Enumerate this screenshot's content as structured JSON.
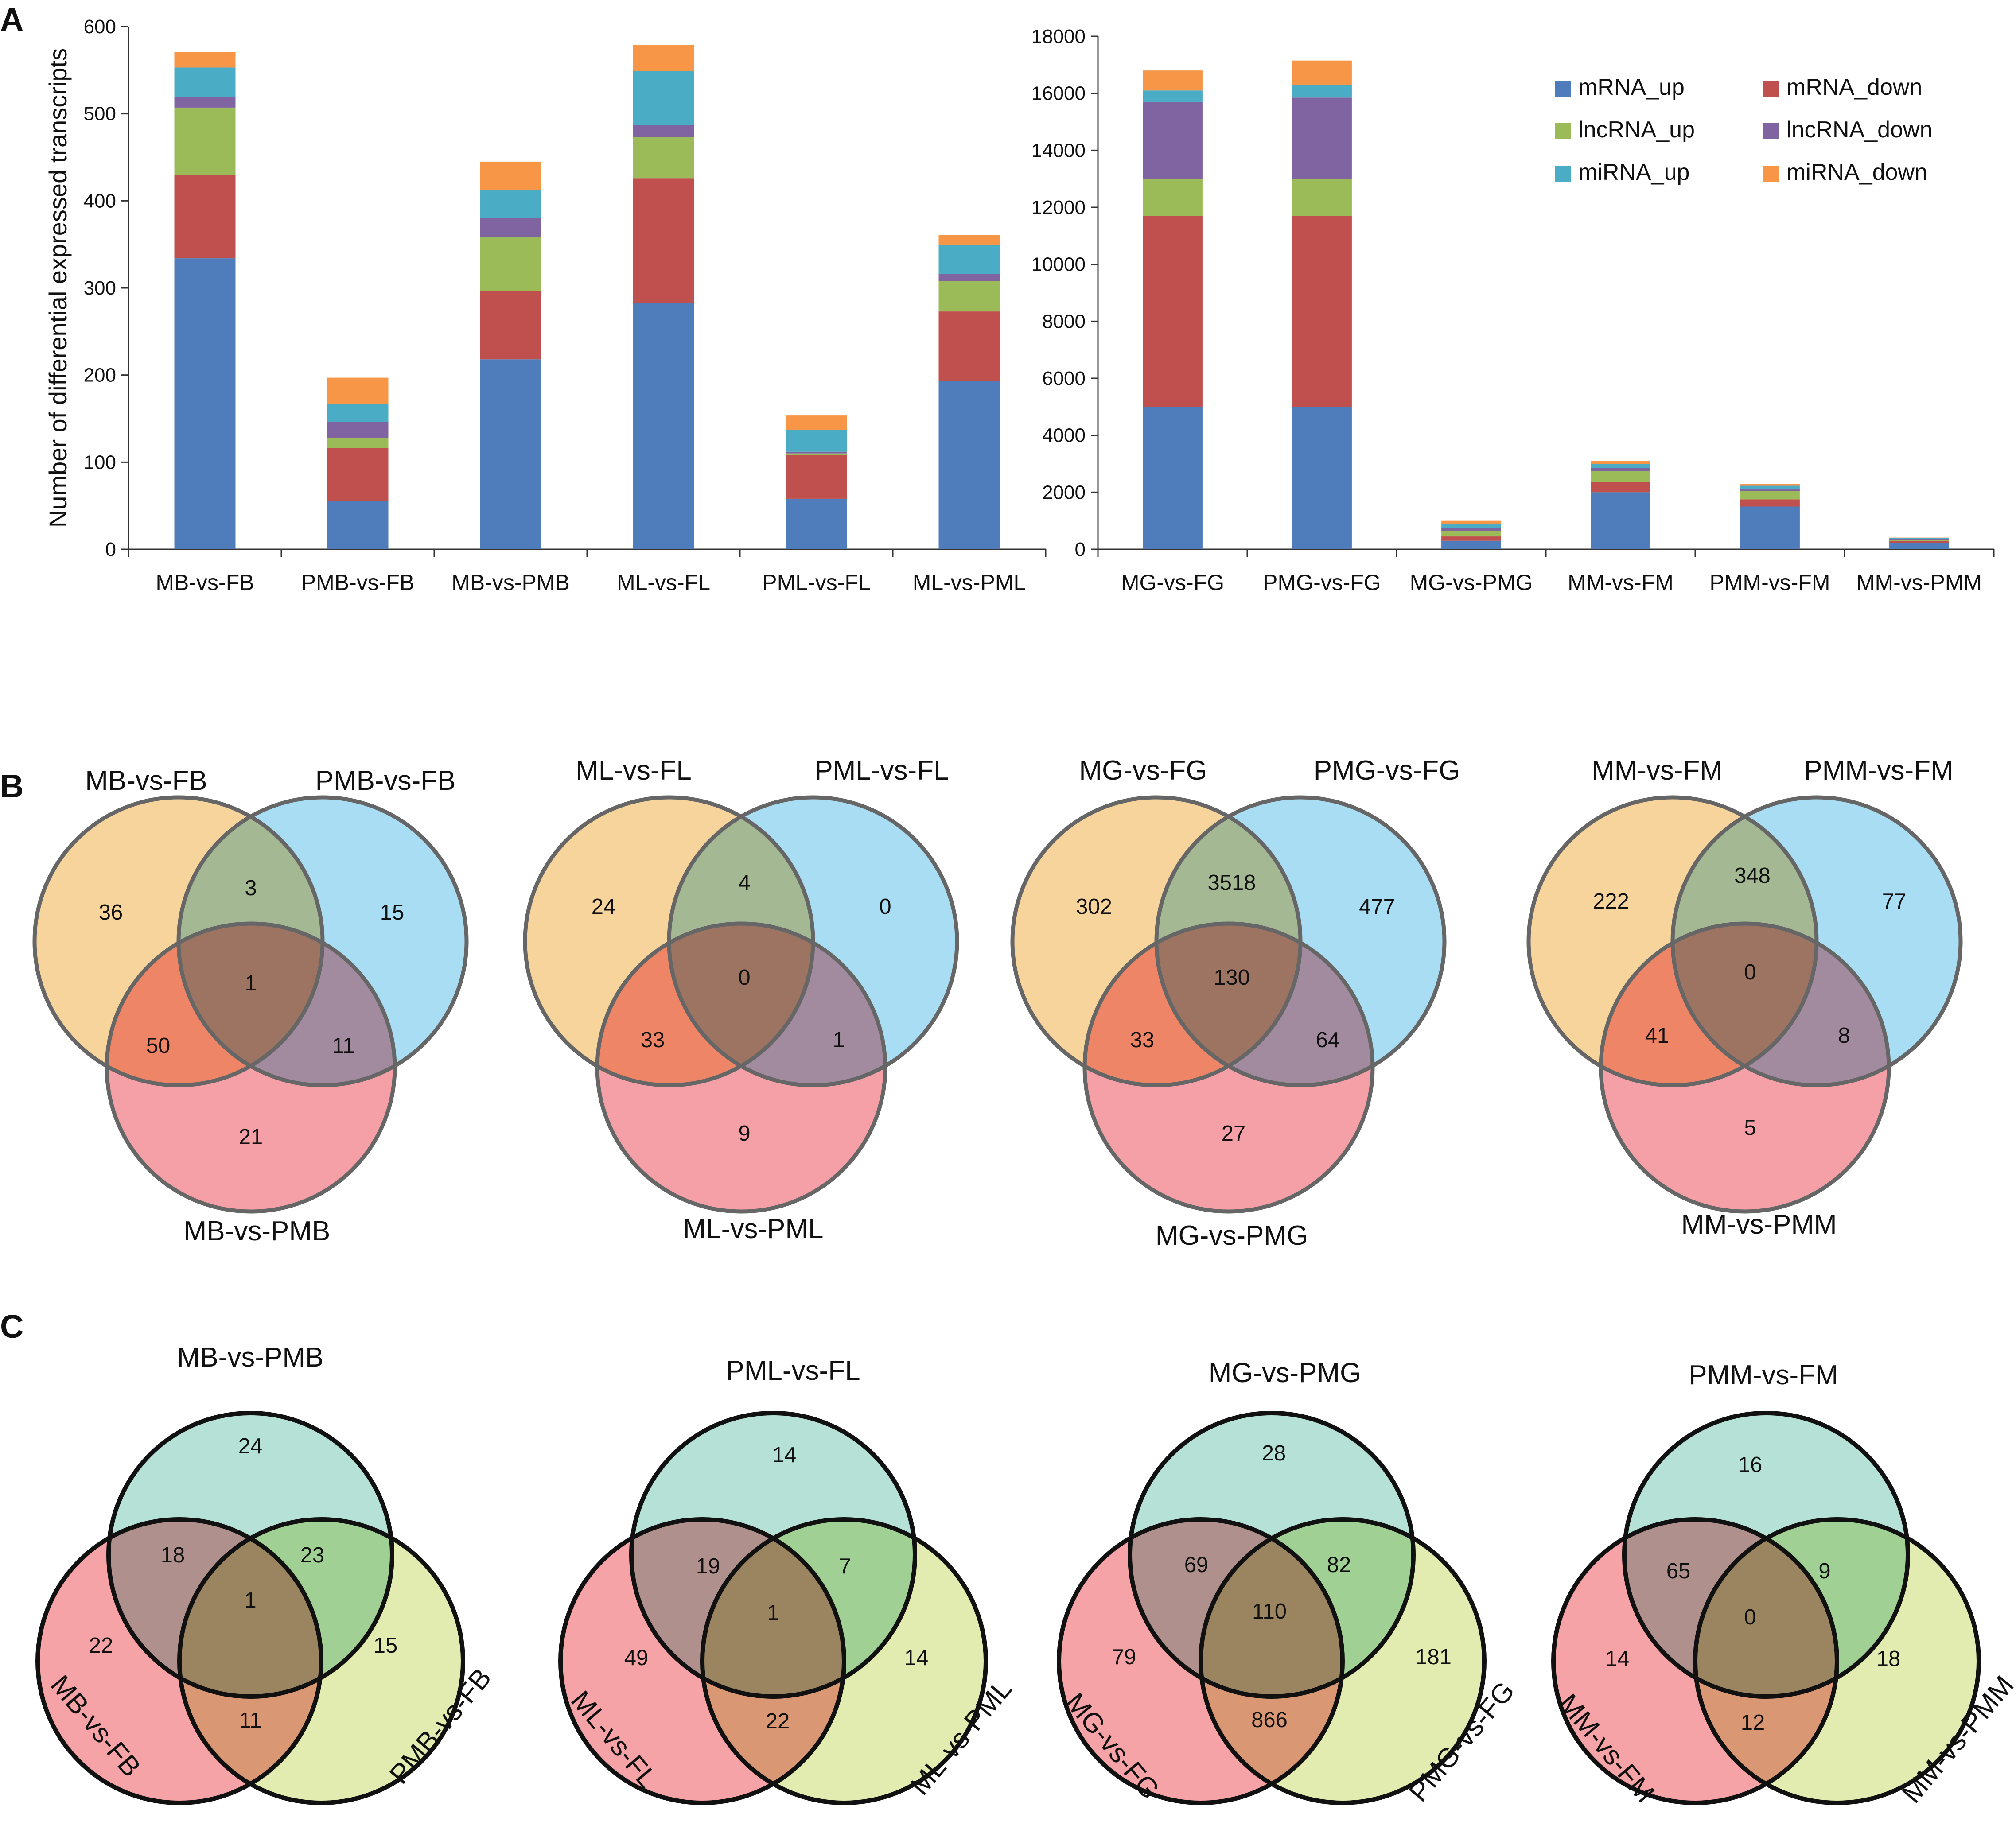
{
  "panels": {
    "a": "A",
    "b": "B",
    "c": "C"
  },
  "colors": {
    "mRNA_up": "#4f7cba",
    "mRNA_down": "#c0504d",
    "lncRNA_up": "#9bbb59",
    "lncRNA_down": "#8064a2",
    "miRNA_up": "#4bacc6",
    "miRNA_down": "#f79646",
    "venn_b": [
      "#f7d49b",
      "#a9ddf3",
      "#f5a0a7"
    ],
    "venn_c": [
      "#f5a3a7",
      "#b6e1d6",
      "#e2ecb0"
    ]
  },
  "chart_data": [
    {
      "type": "bar",
      "stacked": true,
      "title": "",
      "ylabel": "Number of differential expressed transcripts",
      "xlabel": "",
      "ylim": [
        0,
        600
      ],
      "yticks": [
        0,
        100,
        200,
        300,
        400,
        500,
        600
      ],
      "categories": [
        "MB-vs-FB",
        "PMB-vs-FB",
        "MB-vs-PMB",
        "ML-vs-FL",
        "PML-vs-FL",
        "ML-vs-PML"
      ],
      "series": [
        {
          "name": "mRNA_up",
          "values": [
            334,
            55,
            218,
            283,
            58,
            193
          ]
        },
        {
          "name": "mRNA_down",
          "values": [
            96,
            61,
            78,
            143,
            50,
            80
          ]
        },
        {
          "name": "lncRNA_up",
          "values": [
            77,
            12,
            62,
            47,
            2,
            35
          ]
        },
        {
          "name": "lncRNA_down",
          "values": [
            12,
            18,
            22,
            14,
            2,
            8
          ]
        },
        {
          "name": "miRNA_up",
          "values": [
            34,
            21,
            32,
            62,
            25,
            33
          ]
        },
        {
          "name": "miRNA_down",
          "values": [
            18,
            30,
            33,
            30,
            17,
            12
          ]
        }
      ]
    },
    {
      "type": "bar",
      "stacked": true,
      "title": "",
      "ylabel": "",
      "xlabel": "",
      "ylim": [
        0,
        18000
      ],
      "yticks": [
        0,
        2000,
        4000,
        6000,
        8000,
        10000,
        12000,
        14000,
        16000,
        18000
      ],
      "legend_position": "top-right",
      "categories": [
        "MG-vs-FG",
        "PMG-vs-FG",
        "MG-vs-PMG",
        "MM-vs-FM",
        "PMM-vs-FM",
        "MM-vs-PMM"
      ],
      "series": [
        {
          "name": "mRNA_up",
          "values": [
            5000,
            5000,
            300,
            2000,
            1500,
            220
          ]
        },
        {
          "name": "mRNA_down",
          "values": [
            6700,
            6700,
            150,
            350,
            250,
            70
          ]
        },
        {
          "name": "lncRNA_up",
          "values": [
            1300,
            1300,
            200,
            400,
            300,
            50
          ]
        },
        {
          "name": "lncRNA_down",
          "values": [
            2700,
            2850,
            100,
            100,
            80,
            20
          ]
        },
        {
          "name": "miRNA_up",
          "values": [
            400,
            450,
            150,
            150,
            100,
            30
          ]
        },
        {
          "name": "miRNA_down",
          "values": [
            700,
            850,
            100,
            100,
            70,
            20
          ]
        }
      ]
    }
  ],
  "venn_b": [
    {
      "sets": [
        "MB-vs-FB",
        "PMB-vs-FB",
        "MB-vs-PMB"
      ],
      "values": {
        "a": "36",
        "b": "15",
        "c": "21",
        "ab": "3",
        "ac": "50",
        "bc": "11",
        "abc": "1"
      }
    },
    {
      "sets": [
        "ML-vs-FL",
        "PML-vs-FL",
        "ML-vs-PML"
      ],
      "values": {
        "a": "24",
        "b": "0",
        "c": "9",
        "ab": "4",
        "ac": "33",
        "bc": "1",
        "abc": "0"
      }
    },
    {
      "sets": [
        "MG-vs-FG",
        "PMG-vs-FG",
        "MG-vs-PMG"
      ],
      "values": {
        "a": "302",
        "b": "477",
        "c": "27",
        "ab": "3518",
        "ac": "33",
        "bc": "64",
        "abc": "130"
      }
    },
    {
      "sets": [
        "MM-vs-FM",
        "PMM-vs-FM",
        "MM-vs-PMM"
      ],
      "values": {
        "a": "222",
        "b": "77",
        "c": "5",
        "ab": "348",
        "ac": "41",
        "bc": "8",
        "abc": "0"
      }
    }
  ],
  "venn_c": [
    {
      "sets": [
        "MB-vs-FB",
        "MB-vs-PMB",
        "PMB-vs-FB"
      ],
      "values": {
        "a": "22",
        "b": "24",
        "c": "15",
        "ab": "18",
        "ac": "11",
        "bc": "23",
        "abc": "1"
      }
    },
    {
      "sets": [
        "ML-vs-FL",
        "PML-vs-FL",
        "ML-vs-PML"
      ],
      "values": {
        "a": "49",
        "b": "14",
        "c": "14",
        "ab": "19",
        "ac": "22",
        "bc": "7",
        "abc": "1"
      }
    },
    {
      "sets": [
        "MG-vs-FG",
        "MG-vs-PMG",
        "PMG-vs-FG"
      ],
      "values": {
        "a": "79",
        "b": "28",
        "c": "181",
        "ab": "69",
        "ac": "866",
        "bc": "82",
        "abc": "110"
      }
    },
    {
      "sets": [
        "MM-vs-FM",
        "PMM-vs-FM",
        "MM-vs-PMM"
      ],
      "values": {
        "a": "14",
        "b": "16",
        "c": "18",
        "ab": "65",
        "ac": "12",
        "bc": "9",
        "abc": "0"
      }
    }
  ]
}
